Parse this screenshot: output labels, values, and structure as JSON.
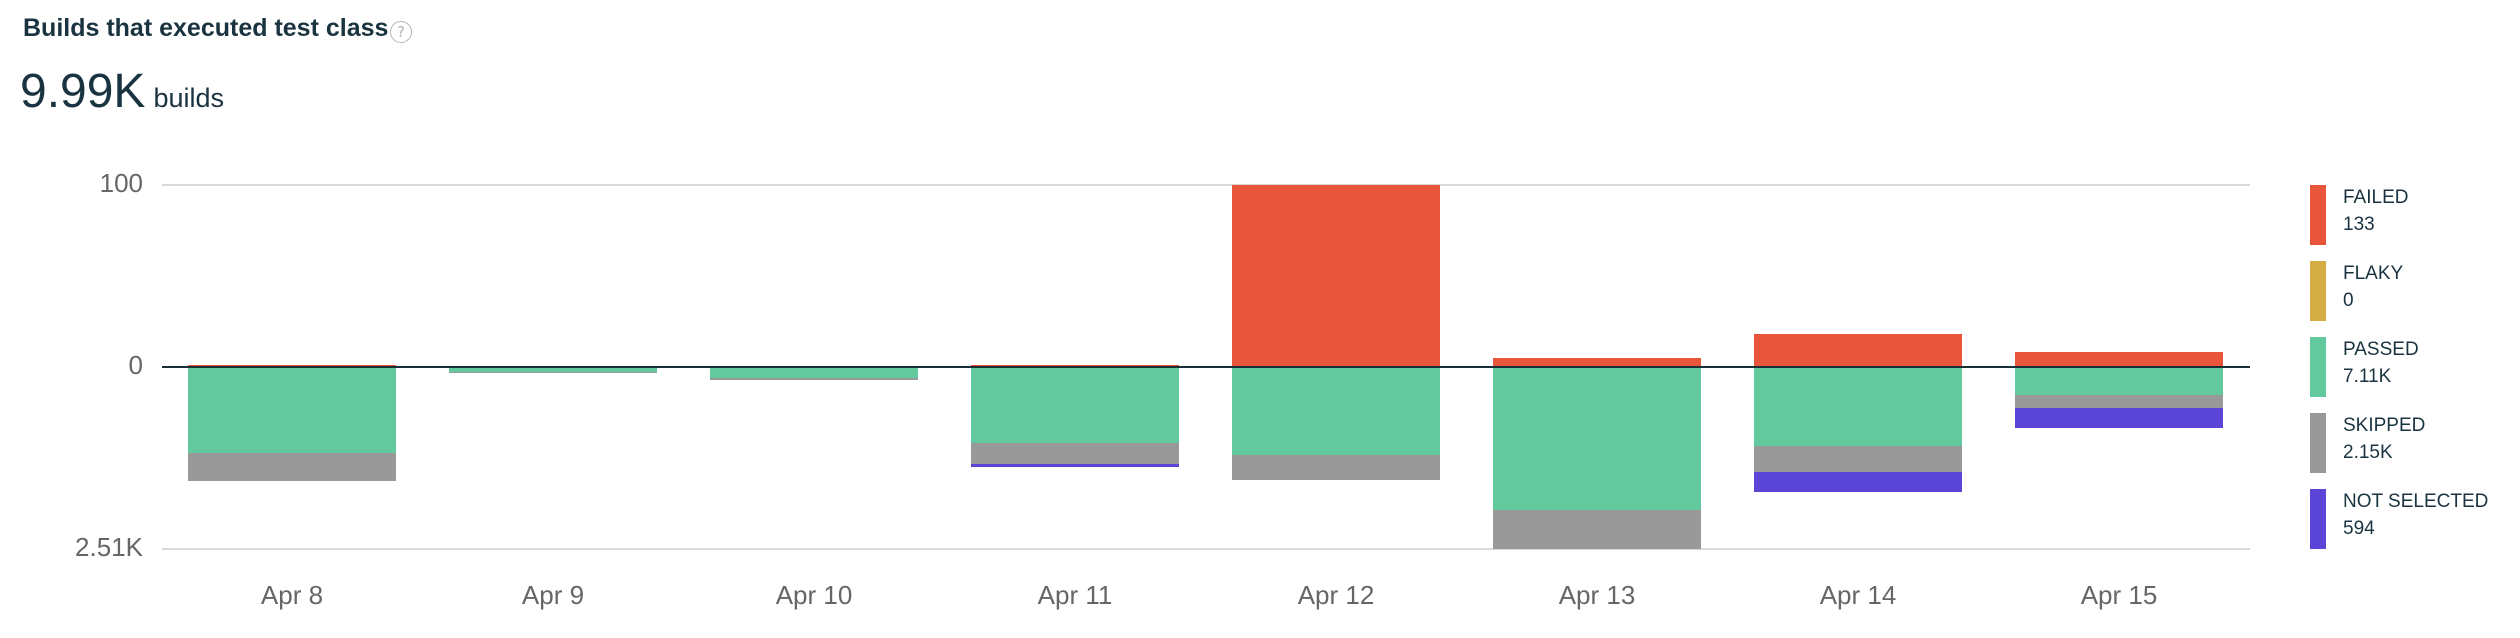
{
  "header": {
    "title": "Builds that executed test class",
    "help_icon": "?",
    "total_value": "9.99K",
    "total_unit": "builds"
  },
  "axis": {
    "y_ticks": [
      "100",
      "0",
      "2.51K"
    ]
  },
  "colors": {
    "failed": "#e8553a",
    "flaky": "#d4ae45",
    "passed": "#62c99f",
    "skipped": "#999999",
    "not_selected": "#5a45d6"
  },
  "legend": [
    {
      "name": "FAILED",
      "value": "133",
      "color": "#e8553a"
    },
    {
      "name": "FLAKY",
      "value": "0",
      "color": "#d4ae45"
    },
    {
      "name": "PASSED",
      "value": "7.11K",
      "color": "#62c99f"
    },
    {
      "name": "SKIPPED",
      "value": "2.15K",
      "color": "#999999"
    },
    {
      "name": "NOT SELECTED",
      "value": "594",
      "color": "#5a45d6"
    }
  ],
  "chart_data": {
    "type": "bar",
    "stacked": true,
    "diverging": true,
    "title": "Builds that executed test class",
    "subtitle": "9.99K builds",
    "categories": [
      "Apr 8",
      "Apr 9",
      "Apr 10",
      "Apr 11",
      "Apr 12",
      "Apr 13",
      "Apr 14",
      "Apr 15"
    ],
    "series": [
      {
        "name": "FAILED",
        "direction": "up",
        "color": "#e8553a",
        "total": "133",
        "values": [
          1,
          0,
          0,
          1,
          100,
          5,
          18,
          8
        ]
      },
      {
        "name": "FLAKY",
        "direction": "up",
        "color": "#d4ae45",
        "total": "0",
        "values": [
          0,
          0,
          0,
          0,
          0,
          0,
          0,
          0
        ]
      },
      {
        "name": "PASSED",
        "direction": "down",
        "color": "#62c99f",
        "total": "7.11K",
        "values": [
          1186,
          69,
          152,
          1048,
          1214,
          1972,
          1089,
          380
        ]
      },
      {
        "name": "SKIPPED",
        "direction": "down",
        "color": "#999999",
        "total": "2.15K",
        "values": [
          390,
          5,
          30,
          295,
          350,
          538,
          355,
          187
        ]
      },
      {
        "name": "NOT SELECTED",
        "direction": "down",
        "color": "#5a45d6",
        "total": "594",
        "values": [
          0,
          0,
          0,
          42,
          0,
          0,
          276,
          276
        ]
      }
    ],
    "y_ticks": [
      "100",
      "0",
      "2.51K"
    ],
    "ylim_positive": 100,
    "ylim_negative": 2510,
    "xlabel": "",
    "ylabel": "",
    "grid": true,
    "legend_position": "right"
  }
}
